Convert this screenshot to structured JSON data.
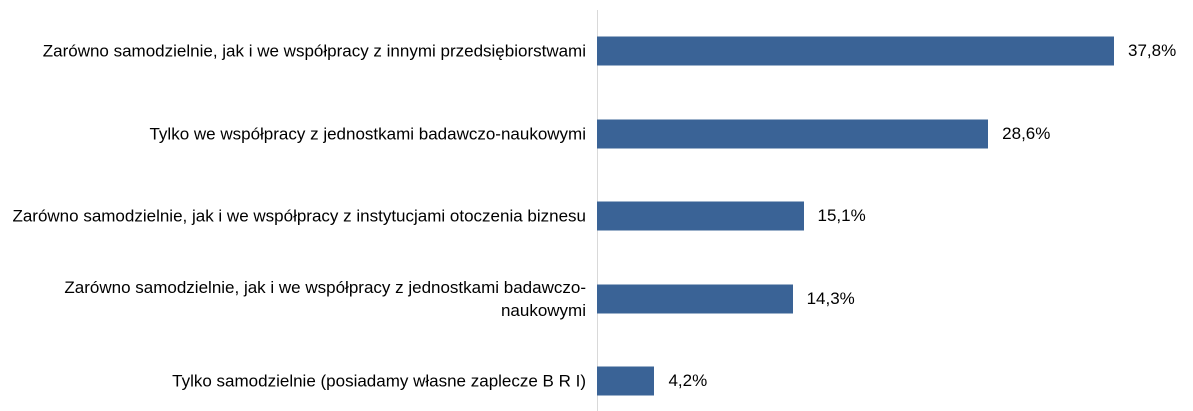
{
  "chart_data": {
    "type": "bar",
    "orientation": "horizontal",
    "categories": [
      "Zarówno samodzielnie, jak i we współpracy z innymi przedsiębiorstwami",
      "Tylko we współpracy z jednostkami badawczo-naukowymi",
      "Zarówno samodzielnie, jak i we współpracy z instytucjami otoczenia biznesu",
      "Zarówno samodzielnie, jak i we współpracy z jednostkami badawczo-naukowymi",
      "Tylko samodzielnie (posiadamy własne zaplecze B R I)"
    ],
    "values": [
      37.8,
      28.6,
      15.1,
      14.3,
      4.2
    ],
    "value_labels": [
      "37,8%",
      "28,6%",
      "15,1%",
      "14,3%",
      "4,2%"
    ],
    "color": "#3a6396"
  }
}
